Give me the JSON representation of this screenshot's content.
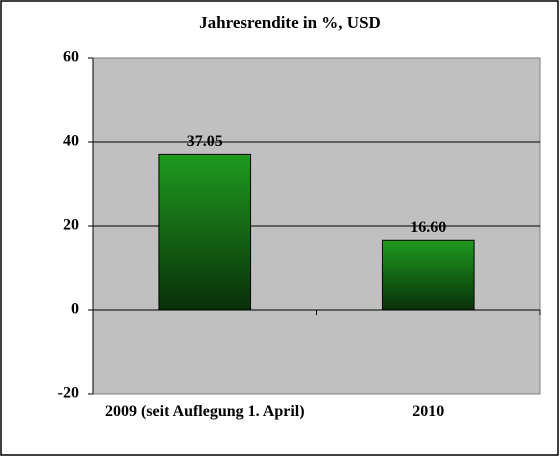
{
  "chart_data": {
    "type": "bar",
    "title": "Jahresrendite in %, USD",
    "categories": [
      "2009 (seit Auflegung 1. April)",
      "2010"
    ],
    "values": [
      37.05,
      16.6
    ],
    "value_labels": [
      "37.05",
      "16.60"
    ],
    "color": "#1f9a1f",
    "ylim": [
      -20,
      60
    ],
    "yticks": [
      -20,
      0,
      20,
      40,
      60
    ],
    "grid": true
  }
}
